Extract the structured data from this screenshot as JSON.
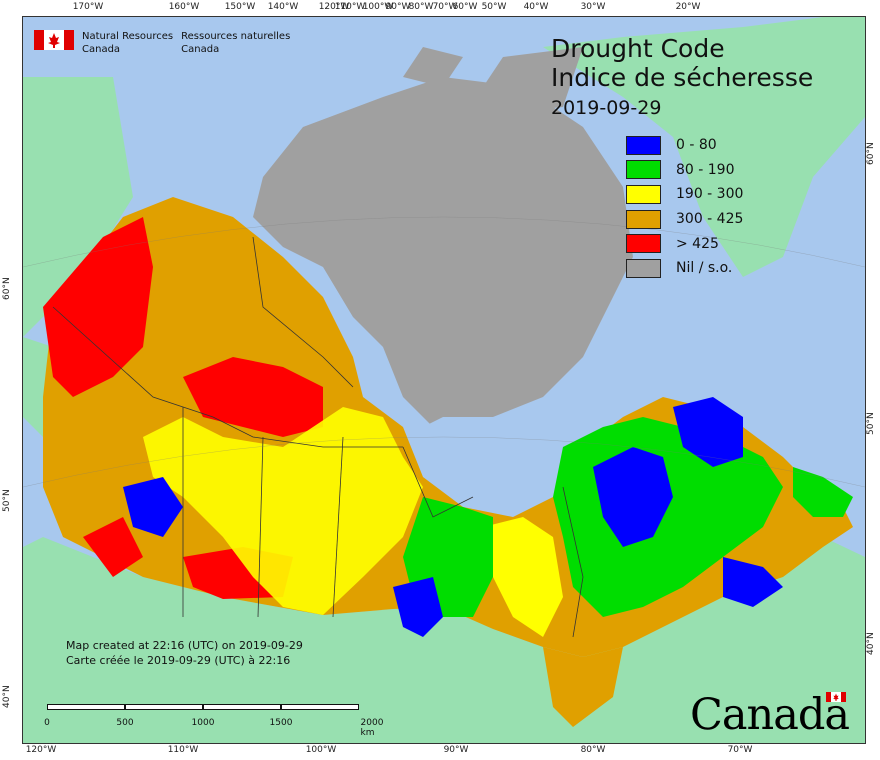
{
  "org": {
    "name_en_line1": "Natural Resources",
    "name_en_line2": "Canada",
    "name_fr_line1": "Ressources naturelles",
    "name_fr_line2": "Canada"
  },
  "title": {
    "en": "Drought Code",
    "fr": "Indice de sécheresse",
    "date": "2019-09-29"
  },
  "legend": [
    {
      "label": "0 - 80",
      "color": "#0000ff"
    },
    {
      "label": "80 - 190",
      "color": "#00dd00"
    },
    {
      "label": "190 - 300",
      "color": "#ffff00"
    },
    {
      "label": "300 - 425",
      "color": "#e0a000"
    },
    {
      "label": "> 425",
      "color": "#ff0000"
    },
    {
      "label": "Nil / s.o.",
      "color": "#a0a0a0"
    }
  ],
  "credit": {
    "en": "Map created at 22:16 (UTC) on 2019-09-29",
    "fr": "Carte créée le 2019-09-29 (UTC) à 22:16"
  },
  "scale": {
    "labels": [
      "0",
      "500",
      "1000",
      "1500",
      "2000  km"
    ]
  },
  "ticks": {
    "top": [
      "170°W",
      "160°W",
      "150°W",
      "140°W",
      "120°W",
      "100°W",
      "110°W",
      "80°W",
      "90°W",
      "60°W",
      "50°W",
      "70°W",
      "40°W",
      "30°W",
      "20°W"
    ],
    "bottom": [
      "120°W",
      "110°W",
      "100°W",
      "90°W",
      "80°W",
      "70°W"
    ],
    "left": [
      "60°N",
      "50°N",
      "40°N"
    ],
    "right": [
      "60°N",
      "50°N",
      "40°N"
    ]
  },
  "wordmark": "Canada",
  "colors": {
    "ocean": "#a8c8ee",
    "land_other": "#98e0b0",
    "nil": "#a0a0a0"
  }
}
